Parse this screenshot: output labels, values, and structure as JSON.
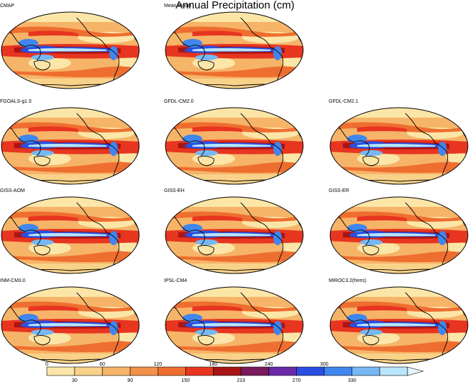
{
  "title": "Annual Precipitation (cm)",
  "panels": [
    {
      "label": "CMAP"
    },
    {
      "label": "Mean Model"
    },
    {
      "label": "FGOALS-g1.0"
    },
    {
      "label": "GFDL-CM2.0"
    },
    {
      "label": "GFDL-CM2.1"
    },
    {
      "label": "GISS-AOM"
    },
    {
      "label": "GISS-EH"
    },
    {
      "label": "GISS-ER"
    },
    {
      "label": "INM-CM3.0"
    },
    {
      "label": "IPSL-CM4"
    },
    {
      "label": "MIROC3.2(hires)"
    }
  ],
  "colorbar": {
    "upper_ticks": [
      "0",
      "60",
      "120",
      "180",
      "240",
      "300"
    ],
    "lower_ticks": [
      "30",
      "90",
      "150",
      "210",
      "270",
      "330"
    ],
    "colors": [
      "#fbe6a8",
      "#f9d28a",
      "#f6b468",
      "#f29248",
      "#ee6e30",
      "#e73520",
      "#a81515",
      "#7a1a5a",
      "#6a2aa8",
      "#2a4fe0",
      "#3f86ee",
      "#75b8f4",
      "#b9e6fa"
    ]
  }
}
